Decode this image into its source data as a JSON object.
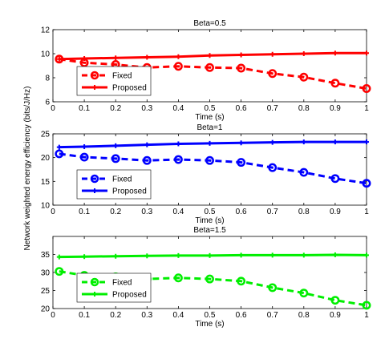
{
  "figure": {
    "ylabel": "Network weighted energy efficiency (bits/J/Hz)"
  },
  "chart_data": [
    {
      "type": "line",
      "title": "Beta=0.5",
      "xlabel": "Time (s)",
      "ylabel": "",
      "xlim": [
        0,
        1
      ],
      "ylim": [
        6,
        12
      ],
      "xticks": [
        "0",
        "0.1",
        "0.2",
        "0.3",
        "0.4",
        "0.5",
        "0.6",
        "0.7",
        "0.8",
        "0.9",
        "1"
      ],
      "yticks": [
        "6",
        "8",
        "10",
        "12"
      ],
      "x": [
        0.02,
        0.1,
        0.2,
        0.3,
        0.4,
        0.5,
        0.6,
        0.7,
        0.8,
        0.9,
        1
      ],
      "legend_position": "bottom-left",
      "grid": false,
      "color": "#ff0000",
      "series": [
        {
          "name": "Fixed",
          "style": "dashed-circle",
          "values": [
            9.55,
            9.25,
            9.1,
            8.85,
            8.95,
            8.85,
            8.8,
            8.35,
            8.05,
            7.55,
            7.1
          ]
        },
        {
          "name": "Proposed",
          "style": "solid-plus",
          "values": [
            9.55,
            9.6,
            9.65,
            9.7,
            9.75,
            9.85,
            9.9,
            9.95,
            10.0,
            10.05,
            10.05
          ]
        }
      ]
    },
    {
      "type": "line",
      "title": "Beta=1",
      "xlabel": "Time (s)",
      "ylabel": "",
      "xlim": [
        0,
        1
      ],
      "ylim": [
        10,
        25
      ],
      "xticks": [
        "0",
        "0.1",
        "0.2",
        "0.3",
        "0.4",
        "0.5",
        "0.6",
        "0.7",
        "0.8",
        "0.9",
        "1"
      ],
      "yticks": [
        "10",
        "15",
        "20",
        "25"
      ],
      "x": [
        0.02,
        0.1,
        0.2,
        0.3,
        0.4,
        0.5,
        0.6,
        0.7,
        0.8,
        0.9,
        1
      ],
      "legend_position": "bottom-left",
      "grid": false,
      "color": "#0000ff",
      "series": [
        {
          "name": "Fixed",
          "style": "dashed-circle",
          "values": [
            20.8,
            20.1,
            19.8,
            19.4,
            19.6,
            19.4,
            19.0,
            17.9,
            16.9,
            15.6,
            14.6
          ]
        },
        {
          "name": "Proposed",
          "style": "solid-plus",
          "values": [
            22.2,
            22.3,
            22.5,
            22.7,
            22.9,
            23.0,
            23.1,
            23.2,
            23.3,
            23.3,
            23.3
          ]
        }
      ]
    },
    {
      "type": "line",
      "title": "Beta=1.5",
      "xlabel": "Time (s)",
      "ylabel": "",
      "xlim": [
        0,
        1
      ],
      "ylim": [
        20,
        40
      ],
      "xticks": [
        "0",
        "0.1",
        "0.2",
        "0.3",
        "0.4",
        "0.5",
        "0.6",
        "0.7",
        "0.8",
        "0.9",
        "1"
      ],
      "yticks": [
        "20",
        "25",
        "30",
        "35"
      ],
      "x": [
        0.02,
        0.1,
        0.2,
        0.3,
        0.4,
        0.5,
        0.6,
        0.7,
        0.8,
        0.9,
        1
      ],
      "legend_position": "bottom-left",
      "grid": false,
      "color": "#00ee00",
      "series": [
        {
          "name": "Fixed",
          "style": "dashed-circle",
          "values": [
            30.3,
            29.2,
            28.8,
            28.2,
            28.5,
            28.2,
            27.6,
            25.8,
            24.3,
            22.3,
            20.9
          ]
        },
        {
          "name": "Proposed",
          "style": "solid-plus",
          "values": [
            34.3,
            34.4,
            34.5,
            34.6,
            34.7,
            34.7,
            34.8,
            34.8,
            34.8,
            34.9,
            34.8
          ]
        }
      ]
    }
  ]
}
